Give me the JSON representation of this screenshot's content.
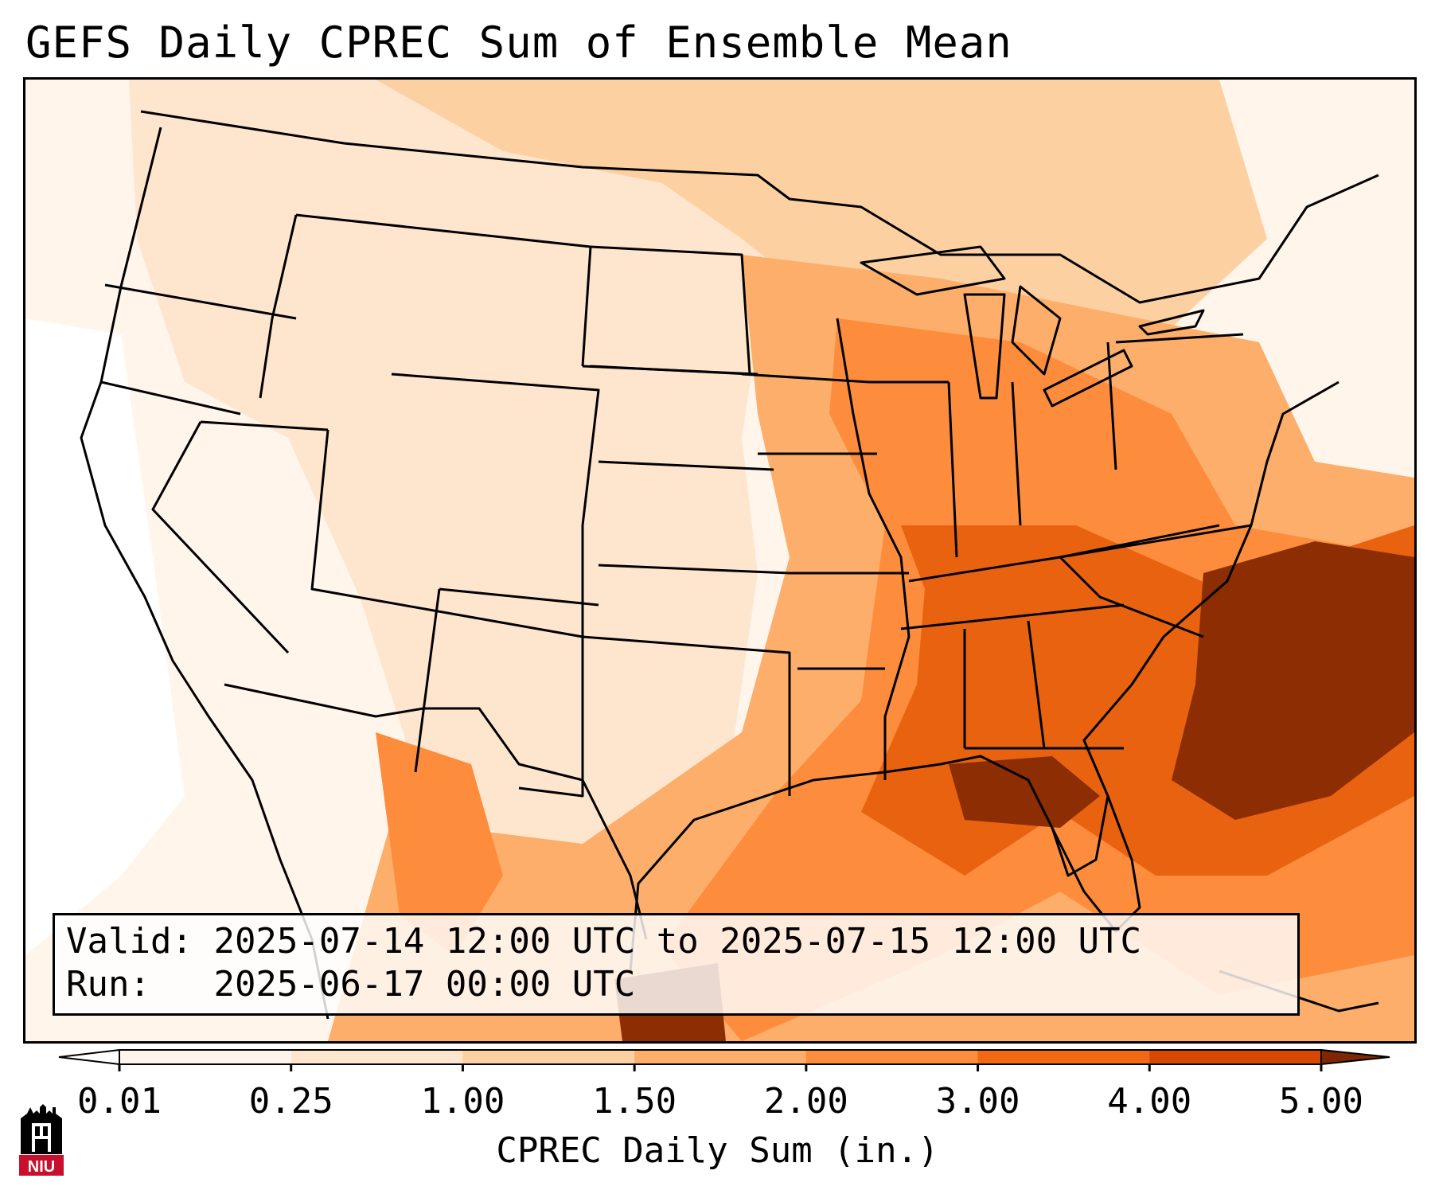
{
  "title": "GEFS Daily CPREC Sum of Ensemble Mean",
  "info": {
    "valid_label": "Valid:",
    "valid_value": "2025-07-14 12:00 UTC to 2025-07-15 12:00 UTC",
    "run_label": "Run:",
    "run_value": "2025-06-17 00:00 UTC"
  },
  "colorbar": {
    "label": "CPREC Daily Sum (in.)",
    "ticks": [
      "0.01",
      "0.25",
      "1.00",
      "1.50",
      "2.00",
      "3.00",
      "4.00",
      "5.00"
    ],
    "colors": [
      "#fff5eb",
      "#fee6ce",
      "#fdd0a2",
      "#fdae6b",
      "#fd8d3c",
      "#f16913",
      "#d94801",
      "#8c2d04"
    ],
    "under_color": "#ffffff",
    "over_color": "#7f2704",
    "extend": "both"
  },
  "logo": {
    "text": "NIU",
    "color": "#c8102e"
  },
  "map": {
    "domain": "Continental United States",
    "colors": {
      "ocean_bg": "#fff8f0",
      "light": "#fee6ce",
      "mid_light": "#fdd0a2",
      "mid": "#fdae6b",
      "orange": "#fd8d3c",
      "dark_orange": "#e8620f",
      "darkest": "#8c2d04"
    }
  }
}
